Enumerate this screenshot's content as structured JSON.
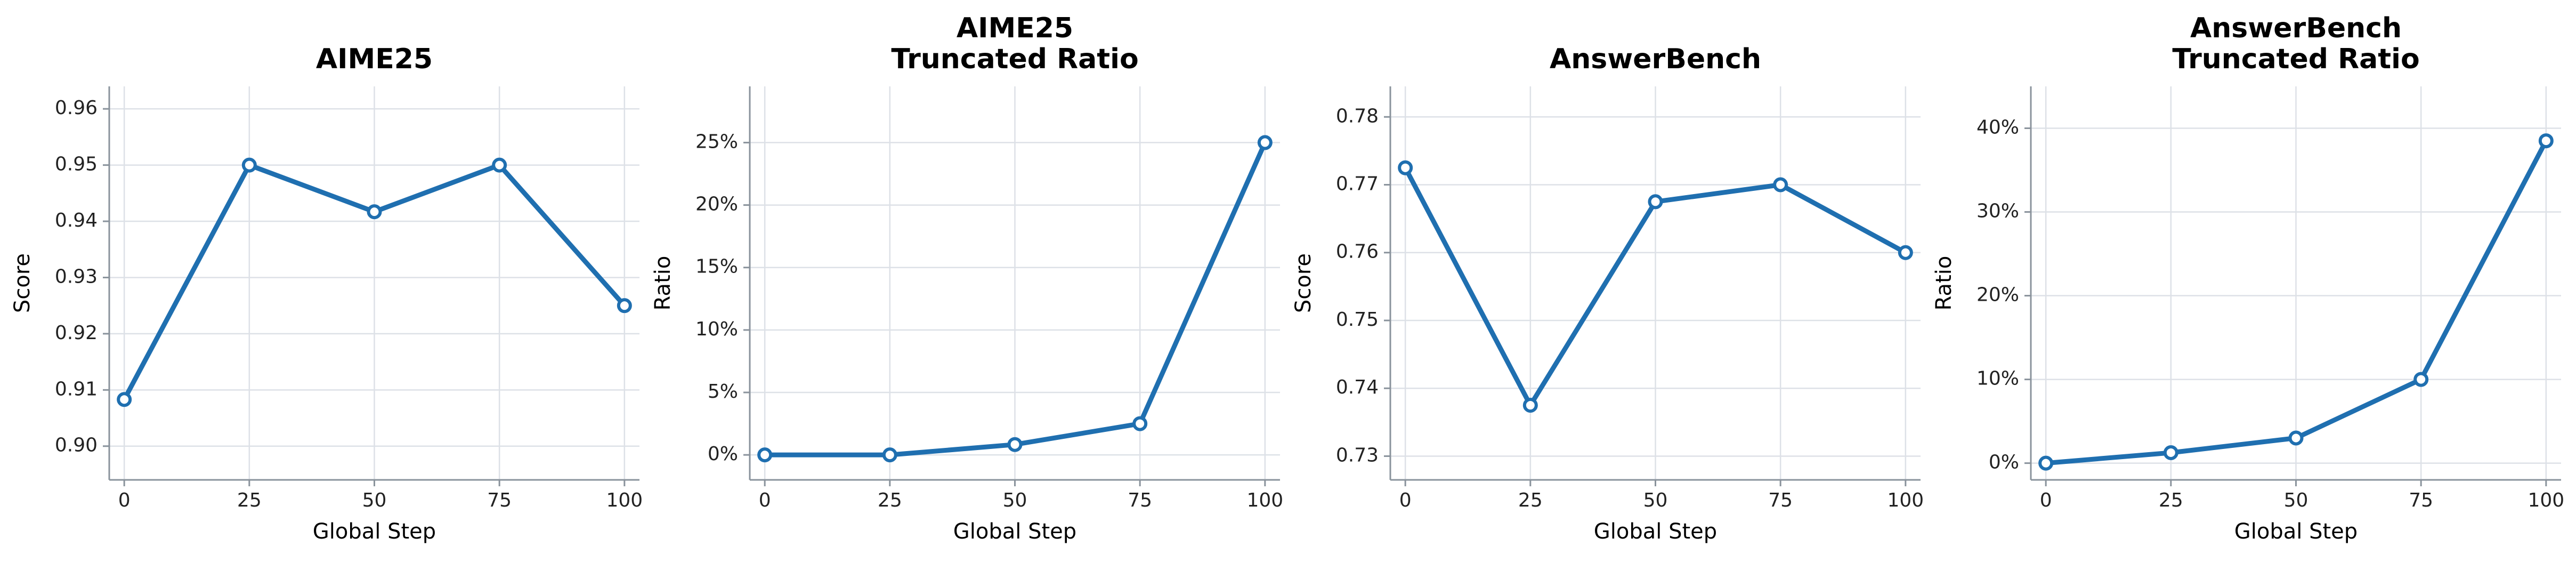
{
  "figure_colors": {
    "line": "#1f6fb0",
    "marker_fill": "#ffffff",
    "grid": "#dde1e7",
    "spine": "#8a939c"
  },
  "chart_data": [
    {
      "type": "line",
      "title": [
        "AIME25"
      ],
      "xlabel": "Global Step",
      "ylabel": "Score",
      "x": [
        0,
        25,
        50,
        75,
        100
      ],
      "series": [
        {
          "values": [
            0.9083,
            0.95,
            0.9417,
            0.95,
            0.925
          ]
        }
      ],
      "xlim": [
        -3,
        103
      ],
      "ylim": [
        0.894,
        0.964
      ],
      "xticks": [
        0,
        25,
        50,
        75,
        100
      ],
      "xtick_labels": [
        "0",
        "25",
        "50",
        "75",
        "100"
      ],
      "yticks": [
        0.9,
        0.91,
        0.92,
        0.93,
        0.94,
        0.95,
        0.96
      ],
      "ytick_labels": [
        "0.90",
        "0.91",
        "0.92",
        "0.93",
        "0.94",
        "0.95",
        "0.96"
      ],
      "grid": true,
      "markers": "open-circle"
    },
    {
      "type": "line",
      "title": [
        "AIME25",
        "Truncated Ratio"
      ],
      "xlabel": "Global Step",
      "ylabel": "Ratio",
      "x": [
        0,
        25,
        50,
        75,
        100
      ],
      "series": [
        {
          "values": [
            0.0,
            0.0,
            0.0083,
            0.025,
            0.25
          ]
        }
      ],
      "xlim": [
        -3,
        103
      ],
      "ylim": [
        -0.02,
        0.295
      ],
      "xticks": [
        0,
        25,
        50,
        75,
        100
      ],
      "xtick_labels": [
        "0",
        "25",
        "50",
        "75",
        "100"
      ],
      "yticks": [
        0.0,
        0.05,
        0.1,
        0.15,
        0.2,
        0.25
      ],
      "ytick_labels": [
        "0%",
        "5%",
        "10%",
        "15%",
        "20%",
        "25%"
      ],
      "grid": true,
      "markers": "open-circle"
    },
    {
      "type": "line",
      "title": [
        "AnswerBench"
      ],
      "xlabel": "Global Step",
      "ylabel": "Score",
      "x": [
        0,
        25,
        50,
        75,
        100
      ],
      "series": [
        {
          "values": [
            0.7725,
            0.7375,
            0.7675,
            0.77,
            0.76
          ]
        }
      ],
      "xlim": [
        -3,
        103
      ],
      "ylim": [
        0.7265,
        0.7845
      ],
      "xticks": [
        0,
        25,
        50,
        75,
        100
      ],
      "xtick_labels": [
        "0",
        "25",
        "50",
        "75",
        "100"
      ],
      "yticks": [
        0.73,
        0.74,
        0.75,
        0.76,
        0.77,
        0.78
      ],
      "ytick_labels": [
        "0.73",
        "0.74",
        "0.75",
        "0.76",
        "0.77",
        "0.78"
      ],
      "grid": true,
      "markers": "open-circle"
    },
    {
      "type": "line",
      "title": [
        "AnswerBench",
        "Truncated Ratio"
      ],
      "xlabel": "Global Step",
      "ylabel": "Ratio",
      "x": [
        0,
        25,
        50,
        75,
        100
      ],
      "series": [
        {
          "values": [
            0.0,
            0.0125,
            0.03,
            0.1,
            0.385
          ]
        }
      ],
      "xlim": [
        -3,
        103
      ],
      "ylim": [
        -0.02,
        0.45
      ],
      "xticks": [
        0,
        25,
        50,
        75,
        100
      ],
      "xtick_labels": [
        "0",
        "25",
        "50",
        "75",
        "100"
      ],
      "yticks": [
        0.0,
        0.1,
        0.2,
        0.3,
        0.4
      ],
      "ytick_labels": [
        "0%",
        "10%",
        "20%",
        "30%",
        "40%"
      ],
      "grid": true,
      "markers": "open-circle"
    }
  ]
}
